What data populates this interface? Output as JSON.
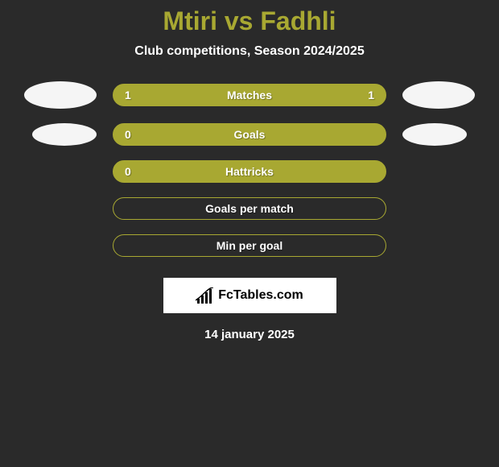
{
  "title": "Mtiri vs Fadhli",
  "subtitle": "Club competitions, Season 2024/2025",
  "stats": [
    {
      "label": "Matches",
      "left_value": "1",
      "right_value": "1",
      "show_left_avatar": true,
      "show_right_avatar": true,
      "avatar_small": false,
      "filled": true
    },
    {
      "label": "Goals",
      "left_value": "0",
      "right_value": "",
      "show_left_avatar": true,
      "show_right_avatar": true,
      "avatar_small": true,
      "filled": true
    },
    {
      "label": "Hattricks",
      "left_value": "0",
      "right_value": "",
      "show_left_avatar": false,
      "show_right_avatar": false,
      "avatar_small": false,
      "filled": true
    },
    {
      "label": "Goals per match",
      "left_value": "",
      "right_value": "",
      "show_left_avatar": false,
      "show_right_avatar": false,
      "avatar_small": false,
      "filled": false
    },
    {
      "label": "Min per goal",
      "left_value": "",
      "right_value": "",
      "show_left_avatar": false,
      "show_right_avatar": false,
      "avatar_small": false,
      "filled": false
    }
  ],
  "logo_text": "FcTables.com",
  "date": "14 january 2025",
  "colors": {
    "background": "#2a2a2a",
    "bar_fill": "#a8a832",
    "bar_border": "#a8a832",
    "title_color": "#a8a832",
    "text_white": "#ffffff",
    "avatar_bg": "#f5f5f5"
  }
}
